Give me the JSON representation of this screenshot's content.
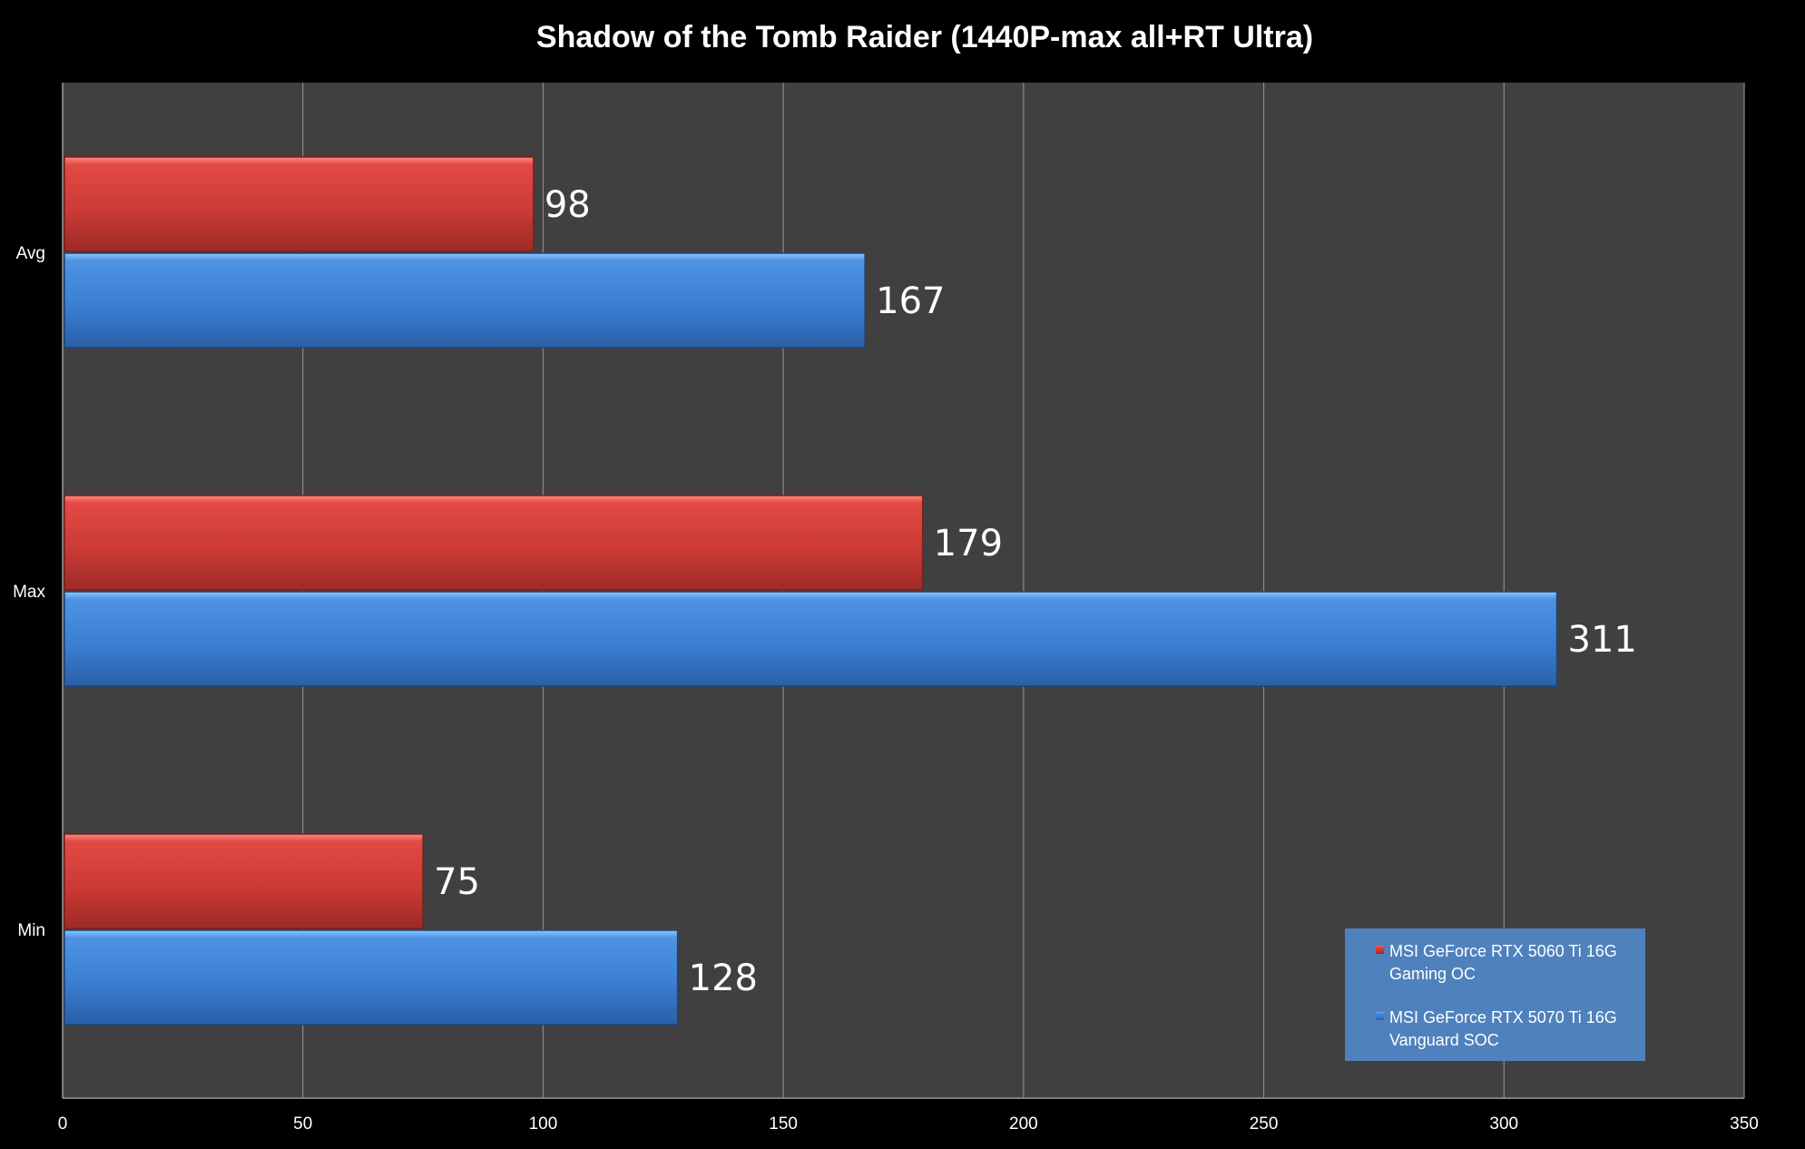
{
  "chart_data": {
    "type": "bar",
    "orientation": "horizontal",
    "title": "Shadow of the Tomb Raider (1440P-max all+RT Ultra)",
    "categories": [
      "Avg",
      "Max",
      "Min"
    ],
    "series": [
      {
        "name": "MSI GeForce RTX 5060 Ti 16G Gaming OC",
        "legend_lines": [
          "MSI GeForce RTX 5060 Ti 16G",
          "Gaming OC"
        ],
        "color": "#c0392b",
        "values": [
          98,
          179,
          75
        ]
      },
      {
        "name": "MSI GeForce RTX 5070 Ti 16G Vanguard SOC",
        "legend_lines": [
          "MSI GeForce RTX 5070 Ti 16G",
          "Vanguard SOC"
        ],
        "color": "#3a7bd5",
        "values": [
          167,
          311,
          128
        ]
      }
    ],
    "xlim": [
      0,
      350
    ],
    "xticks": [
      0,
      50,
      100,
      150,
      200,
      250,
      300,
      350
    ],
    "xlabel": "",
    "ylabel": "",
    "grid": true,
    "legend_position": "bottom-right",
    "colors": {
      "background": "#000000",
      "plot_area": "#404040",
      "gridline": "#8a8a8a",
      "legend_box": "#4f81bd",
      "text": "#ffffff"
    }
  }
}
